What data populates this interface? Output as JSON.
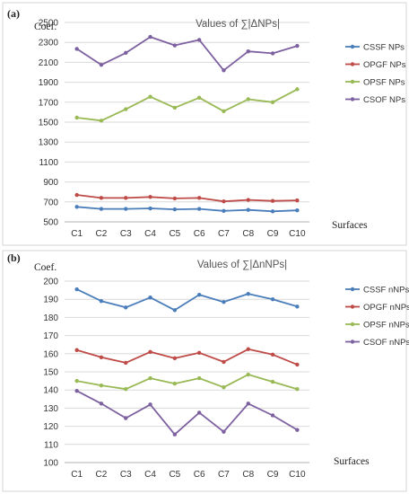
{
  "chart_data": [
    {
      "type": "line",
      "panel_label": "(a)",
      "title": "Values of ∑|ΔNPs|",
      "ylabel": "Coef.",
      "xlabel": "Surfaces",
      "categories": [
        "C1",
        "C2",
        "C3",
        "C4",
        "C5",
        "C6",
        "C7",
        "C8",
        "C9",
        "C10"
      ],
      "ylim": [
        500,
        2500
      ],
      "yticks": [
        500,
        700,
        900,
        1100,
        1300,
        1500,
        1700,
        1900,
        2100,
        2300,
        2500
      ],
      "grid": true,
      "legend_position": "right",
      "series": [
        {
          "name": "CSSF NPs",
          "color": "#4a7ebb",
          "values": [
            650,
            630,
            630,
            635,
            625,
            630,
            610,
            620,
            605,
            615
          ]
        },
        {
          "name": "OPGF NPs",
          "color": "#be4b48",
          "values": [
            770,
            740,
            740,
            750,
            735,
            740,
            705,
            720,
            710,
            715
          ]
        },
        {
          "name": "OPSF NPs",
          "color": "#98b954",
          "values": [
            1545,
            1515,
            1630,
            1755,
            1645,
            1745,
            1610,
            1730,
            1700,
            1830
          ]
        },
        {
          "name": "CSOF NPs",
          "color": "#7d60a0",
          "values": [
            2235,
            2075,
            2195,
            2355,
            2270,
            2325,
            2020,
            2210,
            2190,
            2265
          ]
        }
      ]
    },
    {
      "type": "line",
      "panel_label": "(b)",
      "title": "Values of ∑|ΔnNPs|",
      "ylabel": "Coef.",
      "xlabel": "Surfaces",
      "categories": [
        "C1",
        "C2",
        "C3",
        "C4",
        "C5",
        "C6",
        "C7",
        "C8",
        "C9",
        "C10"
      ],
      "ylim": [
        100,
        200
      ],
      "yticks": [
        100,
        110,
        120,
        130,
        140,
        150,
        160,
        170,
        180,
        190,
        200
      ],
      "grid": true,
      "legend_position": "right",
      "series": [
        {
          "name": "CSSF nNPs",
          "color": "#4a7ebb",
          "values": [
            195.5,
            189,
            185.5,
            191,
            184,
            192.5,
            188.5,
            193,
            190,
            186
          ]
        },
        {
          "name": "OPGF nNPs",
          "color": "#be4b48",
          "values": [
            162,
            158,
            155,
            161,
            157.5,
            160.5,
            155.5,
            162.5,
            159.5,
            154
          ]
        },
        {
          "name": "OPSF nNPs",
          "color": "#98b954",
          "values": [
            145,
            142.5,
            140.5,
            146.5,
            143.5,
            146.5,
            141.5,
            148.5,
            144.5,
            140.5
          ]
        },
        {
          "name": "CSOF nNPs",
          "color": "#7d60a0",
          "values": [
            139.5,
            132.5,
            124.5,
            132,
            115.5,
            127.5,
            117,
            132.5,
            126,
            118
          ]
        }
      ]
    }
  ]
}
